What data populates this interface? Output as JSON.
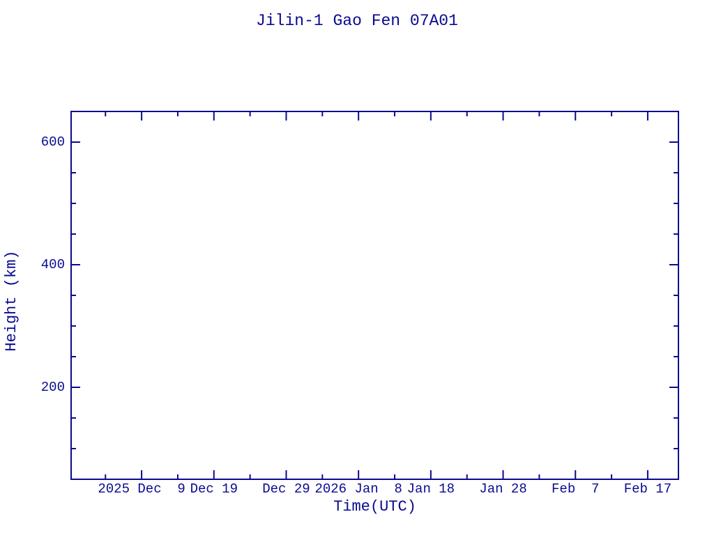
{
  "window": {
    "background": "#FFFFFF"
  },
  "colors": {
    "accent": "#0A0A90",
    "background": "#FFFFFF"
  },
  "chart_data": {
    "type": "line",
    "title": "Jilin-1 Gao Fen 07A01",
    "xlabel": "Time(UTC)",
    "ylabel": "Height (km)",
    "grid": false,
    "legend": "none",
    "series": [],
    "x_axis": {
      "kind": "time",
      "range_start": "2025-11-29T06:00:00Z",
      "range_end": "2026-02-21T06:00:00Z",
      "major_ticks": [
        {
          "date": "2025-12-09T00:00:00Z",
          "label": "2025 Dec  9"
        },
        {
          "date": "2025-12-19T00:00:00Z",
          "label": "Dec 19"
        },
        {
          "date": "2025-12-29T00:00:00Z",
          "label": "Dec 29"
        },
        {
          "date": "2026-01-08T00:00:00Z",
          "label": "2026 Jan  8"
        },
        {
          "date": "2026-01-18T00:00:00Z",
          "label": "Jan 18"
        },
        {
          "date": "2026-01-28T00:00:00Z",
          "label": "Jan 28"
        },
        {
          "date": "2026-02-07T00:00:00Z",
          "label": "Feb  7"
        },
        {
          "date": "2026-02-17T00:00:00Z",
          "label": "Feb 17"
        }
      ],
      "minor_ticks": [
        "2025-12-04T00:00:00Z",
        "2025-12-14T00:00:00Z",
        "2025-12-24T00:00:00Z",
        "2026-01-03T00:00:00Z",
        "2026-01-13T00:00:00Z",
        "2026-01-23T00:00:00Z",
        "2026-02-02T00:00:00Z",
        "2026-02-12T00:00:00Z"
      ]
    },
    "y_axis": {
      "range_min": 50,
      "range_max": 650,
      "major_ticks": [
        {
          "value": 200,
          "label": "200"
        },
        {
          "value": 400,
          "label": "400"
        },
        {
          "value": 600,
          "label": "600"
        }
      ],
      "minor_tick_interval": 50
    }
  }
}
